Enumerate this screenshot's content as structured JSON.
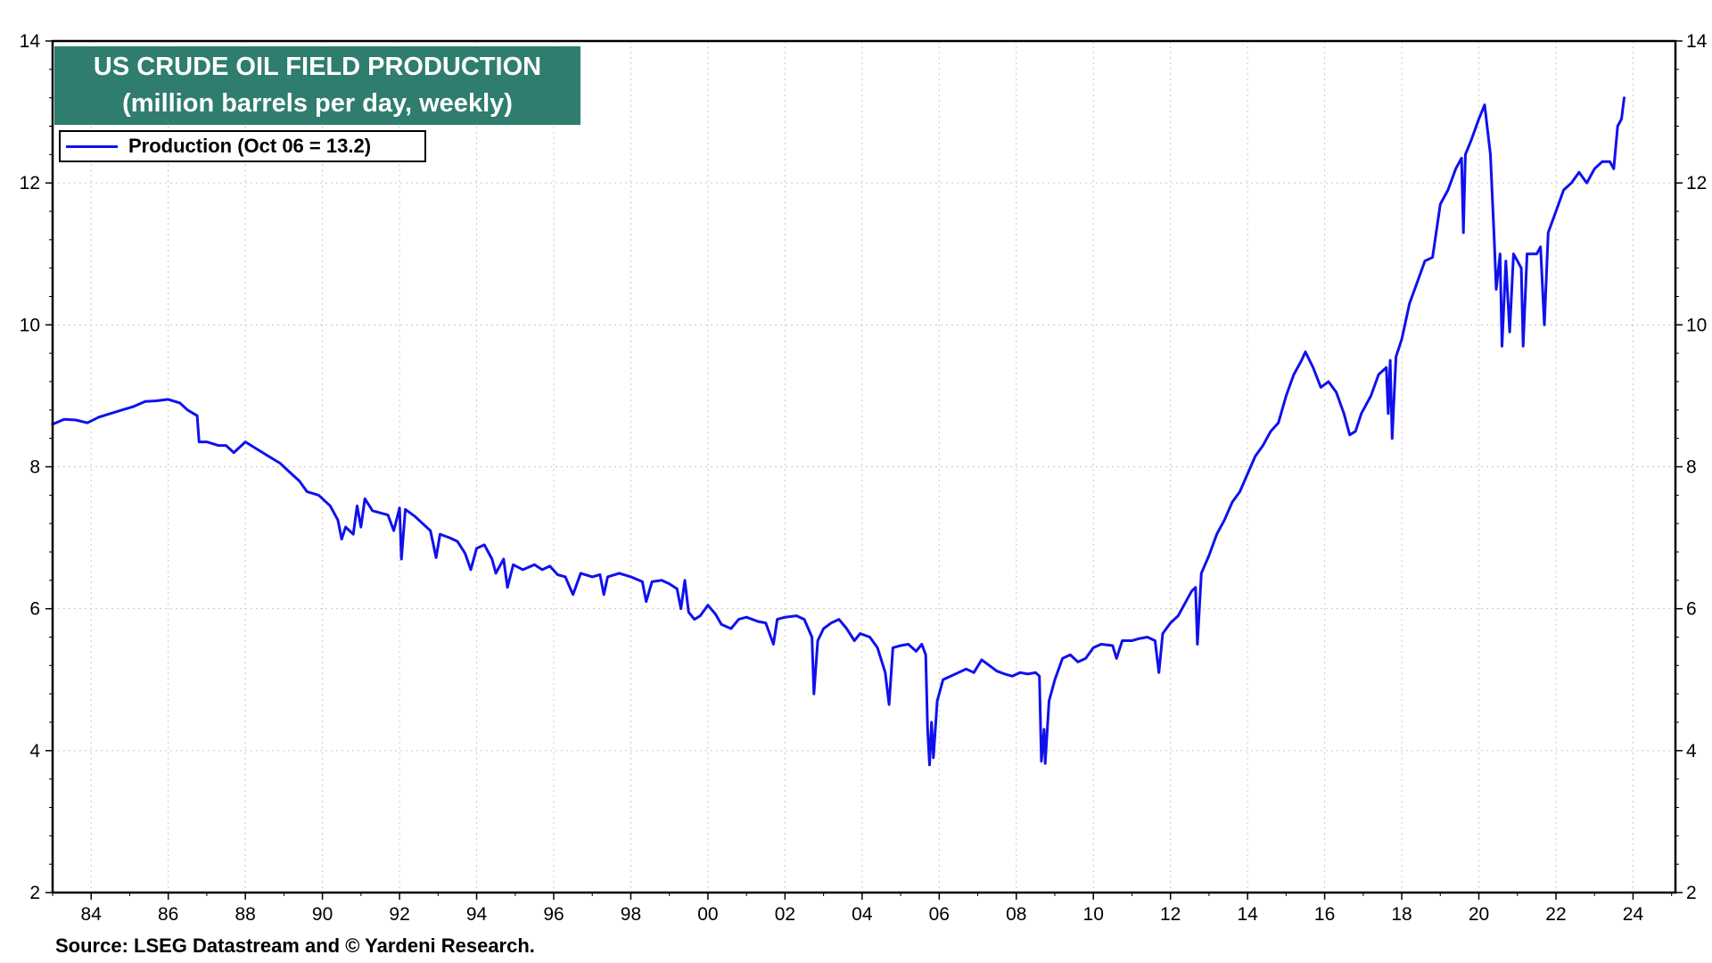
{
  "title": {
    "line1": "US CRUDE OIL FIELD PRODUCTION",
    "line2": "(million barrels per day, weekly)"
  },
  "legend": {
    "label": "Production (Oct 06 = 13.2)"
  },
  "source": "Source: LSEG Datastream and © Yardeni Research.",
  "colors": {
    "series": "#1010ee",
    "title_bg": "#2e7d6e",
    "grid": "#c8c8c8"
  },
  "chart_data": {
    "type": "line",
    "title": "US CRUDE OIL FIELD PRODUCTION",
    "subtitle": "(million barrels per day, weekly)",
    "xlabel": "",
    "ylabel": "",
    "x_range": [
      1983,
      2025.1
    ],
    "ylim": [
      2,
      14
    ],
    "y_ticks": [
      2,
      4,
      6,
      8,
      10,
      12,
      14
    ],
    "y_tick_labels": [
      "2",
      "4",
      "6",
      "8",
      "10",
      "12",
      "14"
    ],
    "x_ticks": [
      1984,
      1986,
      1988,
      1990,
      1992,
      1994,
      1996,
      1998,
      2000,
      2002,
      2004,
      2006,
      2008,
      2010,
      2012,
      2014,
      2016,
      2018,
      2020,
      2022,
      2024
    ],
    "x_tick_labels": [
      "84",
      "86",
      "88",
      "90",
      "92",
      "94",
      "96",
      "98",
      "00",
      "02",
      "04",
      "06",
      "08",
      "10",
      "12",
      "14",
      "16",
      "18",
      "20",
      "22",
      "24"
    ],
    "grid": true,
    "legend_position": "top-left",
    "series": [
      {
        "name": "Production (Oct 06 = 13.2)",
        "color": "#1010ee",
        "points": [
          [
            1983.0,
            8.6
          ],
          [
            1983.3,
            8.67
          ],
          [
            1983.6,
            8.66
          ],
          [
            1983.9,
            8.62
          ],
          [
            1984.2,
            8.7
          ],
          [
            1984.5,
            8.75
          ],
          [
            1984.8,
            8.8
          ],
          [
            1985.1,
            8.85
          ],
          [
            1985.4,
            8.92
          ],
          [
            1985.7,
            8.93
          ],
          [
            1986.0,
            8.95
          ],
          [
            1986.3,
            8.9
          ],
          [
            1986.5,
            8.8
          ],
          [
            1986.75,
            8.72
          ],
          [
            1986.8,
            8.35
          ],
          [
            1987.0,
            8.35
          ],
          [
            1987.3,
            8.3
          ],
          [
            1987.5,
            8.3
          ],
          [
            1987.7,
            8.2
          ],
          [
            1988.0,
            8.35
          ],
          [
            1988.3,
            8.25
          ],
          [
            1988.6,
            8.15
          ],
          [
            1988.9,
            8.05
          ],
          [
            1989.2,
            7.9
          ],
          [
            1989.4,
            7.8
          ],
          [
            1989.6,
            7.65
          ],
          [
            1989.9,
            7.6
          ],
          [
            1990.2,
            7.45
          ],
          [
            1990.4,
            7.25
          ],
          [
            1990.5,
            6.98
          ],
          [
            1990.6,
            7.15
          ],
          [
            1990.8,
            7.05
          ],
          [
            1990.9,
            7.45
          ],
          [
            1991.0,
            7.15
          ],
          [
            1991.1,
            7.55
          ],
          [
            1991.3,
            7.38
          ],
          [
            1991.5,
            7.35
          ],
          [
            1991.7,
            7.32
          ],
          [
            1991.85,
            7.1
          ],
          [
            1992.0,
            7.42
          ],
          [
            1992.05,
            6.7
          ],
          [
            1992.15,
            7.4
          ],
          [
            1992.4,
            7.3
          ],
          [
            1992.6,
            7.2
          ],
          [
            1992.8,
            7.1
          ],
          [
            1992.95,
            6.72
          ],
          [
            1993.05,
            7.05
          ],
          [
            1993.3,
            7.0
          ],
          [
            1993.5,
            6.95
          ],
          [
            1993.7,
            6.78
          ],
          [
            1993.85,
            6.55
          ],
          [
            1994.0,
            6.85
          ],
          [
            1994.2,
            6.9
          ],
          [
            1994.4,
            6.7
          ],
          [
            1994.5,
            6.5
          ],
          [
            1994.7,
            6.7
          ],
          [
            1994.8,
            6.3
          ],
          [
            1994.95,
            6.62
          ],
          [
            1995.2,
            6.55
          ],
          [
            1995.5,
            6.62
          ],
          [
            1995.7,
            6.55
          ],
          [
            1995.9,
            6.6
          ],
          [
            1996.1,
            6.48
          ],
          [
            1996.3,
            6.45
          ],
          [
            1996.5,
            6.2
          ],
          [
            1996.7,
            6.5
          ],
          [
            1997.0,
            6.45
          ],
          [
            1997.2,
            6.48
          ],
          [
            1997.3,
            6.2
          ],
          [
            1997.4,
            6.45
          ],
          [
            1997.7,
            6.5
          ],
          [
            1998.0,
            6.45
          ],
          [
            1998.3,
            6.38
          ],
          [
            1998.4,
            6.1
          ],
          [
            1998.55,
            6.38
          ],
          [
            1998.8,
            6.4
          ],
          [
            1999.0,
            6.35
          ],
          [
            1999.2,
            6.28
          ],
          [
            1999.3,
            6.0
          ],
          [
            1999.4,
            6.4
          ],
          [
            1999.5,
            5.95
          ],
          [
            1999.65,
            5.85
          ],
          [
            1999.8,
            5.9
          ],
          [
            2000.0,
            6.05
          ],
          [
            2000.2,
            5.92
          ],
          [
            2000.35,
            5.78
          ],
          [
            2000.6,
            5.72
          ],
          [
            2000.8,
            5.85
          ],
          [
            2001.0,
            5.88
          ],
          [
            2001.3,
            5.82
          ],
          [
            2001.5,
            5.8
          ],
          [
            2001.7,
            5.5
          ],
          [
            2001.8,
            5.85
          ],
          [
            2002.0,
            5.88
          ],
          [
            2002.3,
            5.9
          ],
          [
            2002.5,
            5.85
          ],
          [
            2002.7,
            5.6
          ],
          [
            2002.75,
            4.8
          ],
          [
            2002.85,
            5.55
          ],
          [
            2003.0,
            5.72
          ],
          [
            2003.2,
            5.8
          ],
          [
            2003.4,
            5.85
          ],
          [
            2003.6,
            5.72
          ],
          [
            2003.8,
            5.55
          ],
          [
            2003.95,
            5.65
          ],
          [
            2004.2,
            5.6
          ],
          [
            2004.4,
            5.45
          ],
          [
            2004.6,
            5.1
          ],
          [
            2004.7,
            4.65
          ],
          [
            2004.8,
            5.45
          ],
          [
            2005.0,
            5.48
          ],
          [
            2005.2,
            5.5
          ],
          [
            2005.4,
            5.4
          ],
          [
            2005.55,
            5.5
          ],
          [
            2005.65,
            5.35
          ],
          [
            2005.7,
            4.3
          ],
          [
            2005.75,
            3.8
          ],
          [
            2005.8,
            4.4
          ],
          [
            2005.85,
            3.9
          ],
          [
            2005.95,
            4.7
          ],
          [
            2006.1,
            5.0
          ],
          [
            2006.3,
            5.05
          ],
          [
            2006.5,
            5.1
          ],
          [
            2006.7,
            5.15
          ],
          [
            2006.9,
            5.1
          ],
          [
            2007.1,
            5.28
          ],
          [
            2007.3,
            5.2
          ],
          [
            2007.5,
            5.12
          ],
          [
            2007.7,
            5.08
          ],
          [
            2007.9,
            5.05
          ],
          [
            2008.1,
            5.1
          ],
          [
            2008.3,
            5.08
          ],
          [
            2008.5,
            5.1
          ],
          [
            2008.6,
            5.05
          ],
          [
            2008.65,
            3.85
          ],
          [
            2008.72,
            4.3
          ],
          [
            2008.75,
            3.82
          ],
          [
            2008.85,
            4.7
          ],
          [
            2009.0,
            5.0
          ],
          [
            2009.2,
            5.3
          ],
          [
            2009.4,
            5.35
          ],
          [
            2009.6,
            5.25
          ],
          [
            2009.8,
            5.3
          ],
          [
            2010.0,
            5.45
          ],
          [
            2010.2,
            5.5
          ],
          [
            2010.5,
            5.48
          ],
          [
            2010.6,
            5.3
          ],
          [
            2010.75,
            5.55
          ],
          [
            2011.0,
            5.55
          ],
          [
            2011.2,
            5.58
          ],
          [
            2011.4,
            5.6
          ],
          [
            2011.6,
            5.55
          ],
          [
            2011.7,
            5.1
          ],
          [
            2011.8,
            5.65
          ],
          [
            2012.0,
            5.8
          ],
          [
            2012.2,
            5.9
          ],
          [
            2012.4,
            6.1
          ],
          [
            2012.55,
            6.25
          ],
          [
            2012.65,
            6.3
          ],
          [
            2012.7,
            5.5
          ],
          [
            2012.8,
            6.5
          ],
          [
            2013.0,
            6.75
          ],
          [
            2013.2,
            7.05
          ],
          [
            2013.4,
            7.25
          ],
          [
            2013.6,
            7.5
          ],
          [
            2013.8,
            7.65
          ],
          [
            2014.0,
            7.9
          ],
          [
            2014.2,
            8.15
          ],
          [
            2014.4,
            8.3
          ],
          [
            2014.6,
            8.5
          ],
          [
            2014.8,
            8.62
          ],
          [
            2015.0,
            9.0
          ],
          [
            2015.2,
            9.3
          ],
          [
            2015.4,
            9.5
          ],
          [
            2015.5,
            9.62
          ],
          [
            2015.7,
            9.4
          ],
          [
            2015.9,
            9.12
          ],
          [
            2016.1,
            9.2
          ],
          [
            2016.3,
            9.05
          ],
          [
            2016.5,
            8.75
          ],
          [
            2016.65,
            8.45
          ],
          [
            2016.8,
            8.5
          ],
          [
            2016.95,
            8.75
          ],
          [
            2017.2,
            9.0
          ],
          [
            2017.4,
            9.3
          ],
          [
            2017.6,
            9.4
          ],
          [
            2017.65,
            8.75
          ],
          [
            2017.7,
            9.5
          ],
          [
            2017.75,
            8.4
          ],
          [
            2017.85,
            9.55
          ],
          [
            2018.0,
            9.8
          ],
          [
            2018.2,
            10.3
          ],
          [
            2018.4,
            10.6
          ],
          [
            2018.6,
            10.9
          ],
          [
            2018.8,
            10.95
          ],
          [
            2019.0,
            11.7
          ],
          [
            2019.2,
            11.9
          ],
          [
            2019.4,
            12.2
          ],
          [
            2019.55,
            12.35
          ],
          [
            2019.6,
            11.3
          ],
          [
            2019.65,
            12.4
          ],
          [
            2019.8,
            12.6
          ],
          [
            2020.0,
            12.9
          ],
          [
            2020.15,
            13.1
          ],
          [
            2020.3,
            12.4
          ],
          [
            2020.4,
            11.2
          ],
          [
            2020.45,
            10.5
          ],
          [
            2020.55,
            11.0
          ],
          [
            2020.6,
            9.7
          ],
          [
            2020.7,
            10.9
          ],
          [
            2020.8,
            9.9
          ],
          [
            2020.9,
            11.0
          ],
          [
            2021.0,
            10.9
          ],
          [
            2021.1,
            10.8
          ],
          [
            2021.15,
            9.7
          ],
          [
            2021.25,
            11.0
          ],
          [
            2021.5,
            11.0
          ],
          [
            2021.6,
            11.1
          ],
          [
            2021.7,
            10.0
          ],
          [
            2021.8,
            11.3
          ],
          [
            2022.0,
            11.6
          ],
          [
            2022.2,
            11.9
          ],
          [
            2022.4,
            12.0
          ],
          [
            2022.6,
            12.15
          ],
          [
            2022.8,
            12.0
          ],
          [
            2023.0,
            12.2
          ],
          [
            2023.2,
            12.3
          ],
          [
            2023.4,
            12.3
          ],
          [
            2023.5,
            12.2
          ],
          [
            2023.6,
            12.8
          ],
          [
            2023.7,
            12.9
          ],
          [
            2023.77,
            13.2
          ]
        ]
      }
    ]
  }
}
